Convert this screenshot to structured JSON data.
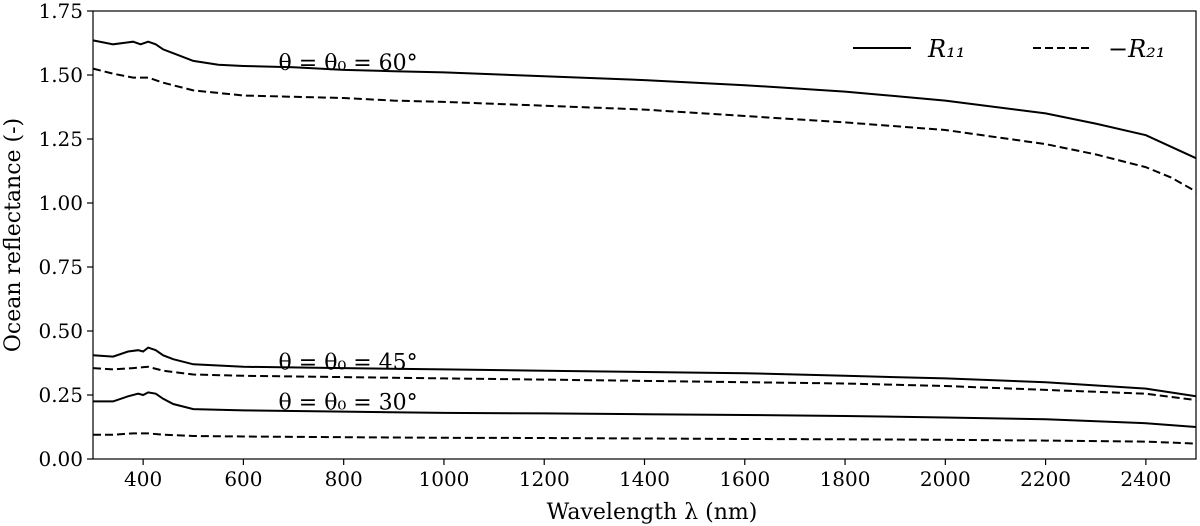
{
  "chart_data": {
    "type": "line",
    "xlabel": "Wavelength λ (nm)",
    "ylabel": "Ocean reflectance (-)",
    "xlim": [
      300,
      2500
    ],
    "ylim": [
      0.0,
      1.75
    ],
    "xticks": [
      400,
      600,
      800,
      1000,
      1200,
      1400,
      1600,
      1800,
      2000,
      2200,
      2400
    ],
    "yticks": [
      0.0,
      0.25,
      0.5,
      0.75,
      1.0,
      1.25,
      1.5,
      1.75
    ],
    "ytick_labels": [
      "0.00",
      "0.25",
      "0.50",
      "0.75",
      "1.00",
      "1.25",
      "1.50",
      "1.75"
    ],
    "grid": false,
    "legend_position": "top-right",
    "legend": [
      {
        "label": "R₁₁",
        "style": "solid"
      },
      {
        "label": "−R₂₁",
        "style": "dashed"
      }
    ],
    "annotations": [
      {
        "text": "θ = θ₀ = 60°",
        "x": 700,
        "y": 1.55
      },
      {
        "text": "θ = θ₀ = 45°",
        "x": 700,
        "y": 0.38
      },
      {
        "text": "θ = θ₀ = 30°",
        "x": 700,
        "y": 0.225
      }
    ],
    "series": [
      {
        "group": "60°",
        "style": "solid",
        "points": [
          [
            300,
            1.635
          ],
          [
            340,
            1.62
          ],
          [
            360,
            1.625
          ],
          [
            380,
            1.63
          ],
          [
            395,
            1.62
          ],
          [
            410,
            1.63
          ],
          [
            425,
            1.62
          ],
          [
            440,
            1.6
          ],
          [
            460,
            1.585
          ],
          [
            500,
            1.555
          ],
          [
            550,
            1.54
          ],
          [
            600,
            1.535
          ],
          [
            700,
            1.53
          ],
          [
            800,
            1.52
          ],
          [
            900,
            1.515
          ],
          [
            1000,
            1.51
          ],
          [
            1200,
            1.495
          ],
          [
            1400,
            1.48
          ],
          [
            1600,
            1.46
          ],
          [
            1800,
            1.435
          ],
          [
            2000,
            1.4
          ],
          [
            2200,
            1.35
          ],
          [
            2300,
            1.31
          ],
          [
            2400,
            1.265
          ],
          [
            2450,
            1.22
          ],
          [
            2500,
            1.175
          ]
        ]
      },
      {
        "group": "60°",
        "style": "dashed",
        "points": [
          [
            300,
            1.525
          ],
          [
            340,
            1.505
          ],
          [
            380,
            1.49
          ],
          [
            410,
            1.49
          ],
          [
            440,
            1.47
          ],
          [
            500,
            1.44
          ],
          [
            600,
            1.42
          ],
          [
            700,
            1.415
          ],
          [
            800,
            1.41
          ],
          [
            900,
            1.4
          ],
          [
            1000,
            1.395
          ],
          [
            1200,
            1.38
          ],
          [
            1400,
            1.365
          ],
          [
            1600,
            1.34
          ],
          [
            1800,
            1.315
          ],
          [
            2000,
            1.285
          ],
          [
            2200,
            1.23
          ],
          [
            2300,
            1.19
          ],
          [
            2400,
            1.14
          ],
          [
            2450,
            1.1
          ],
          [
            2500,
            1.045
          ]
        ]
      },
      {
        "group": "45°",
        "style": "solid",
        "points": [
          [
            300,
            0.405
          ],
          [
            340,
            0.4
          ],
          [
            370,
            0.42
          ],
          [
            390,
            0.425
          ],
          [
            400,
            0.42
          ],
          [
            410,
            0.435
          ],
          [
            425,
            0.425
          ],
          [
            440,
            0.405
          ],
          [
            460,
            0.39
          ],
          [
            500,
            0.37
          ],
          [
            600,
            0.36
          ],
          [
            800,
            0.355
          ],
          [
            1000,
            0.35
          ],
          [
            1200,
            0.345
          ],
          [
            1400,
            0.34
          ],
          [
            1600,
            0.335
          ],
          [
            1800,
            0.325
          ],
          [
            2000,
            0.315
          ],
          [
            2200,
            0.3
          ],
          [
            2400,
            0.275
          ],
          [
            2500,
            0.245
          ]
        ]
      },
      {
        "group": "45°",
        "style": "dashed",
        "points": [
          [
            300,
            0.355
          ],
          [
            340,
            0.35
          ],
          [
            380,
            0.355
          ],
          [
            410,
            0.36
          ],
          [
            440,
            0.345
          ],
          [
            500,
            0.33
          ],
          [
            600,
            0.325
          ],
          [
            800,
            0.32
          ],
          [
            1000,
            0.315
          ],
          [
            1200,
            0.31
          ],
          [
            1400,
            0.305
          ],
          [
            1600,
            0.3
          ],
          [
            1800,
            0.295
          ],
          [
            2000,
            0.285
          ],
          [
            2200,
            0.27
          ],
          [
            2400,
            0.255
          ],
          [
            2500,
            0.23
          ]
        ]
      },
      {
        "group": "30°",
        "style": "solid",
        "points": [
          [
            300,
            0.225
          ],
          [
            340,
            0.225
          ],
          [
            370,
            0.245
          ],
          [
            390,
            0.255
          ],
          [
            400,
            0.25
          ],
          [
            410,
            0.26
          ],
          [
            425,
            0.255
          ],
          [
            440,
            0.235
          ],
          [
            460,
            0.215
          ],
          [
            500,
            0.195
          ],
          [
            600,
            0.19
          ],
          [
            800,
            0.185
          ],
          [
            1000,
            0.18
          ],
          [
            1200,
            0.178
          ],
          [
            1400,
            0.175
          ],
          [
            1600,
            0.172
          ],
          [
            1800,
            0.168
          ],
          [
            2000,
            0.162
          ],
          [
            2200,
            0.155
          ],
          [
            2400,
            0.14
          ],
          [
            2500,
            0.125
          ]
        ]
      },
      {
        "group": "30°",
        "style": "dashed",
        "points": [
          [
            300,
            0.095
          ],
          [
            340,
            0.095
          ],
          [
            380,
            0.1
          ],
          [
            410,
            0.1
          ],
          [
            440,
            0.095
          ],
          [
            500,
            0.09
          ],
          [
            600,
            0.088
          ],
          [
            800,
            0.085
          ],
          [
            1000,
            0.083
          ],
          [
            1200,
            0.082
          ],
          [
            1400,
            0.08
          ],
          [
            1600,
            0.078
          ],
          [
            1800,
            0.077
          ],
          [
            2000,
            0.075
          ],
          [
            2200,
            0.072
          ],
          [
            2400,
            0.068
          ],
          [
            2500,
            0.06
          ]
        ]
      }
    ]
  }
}
